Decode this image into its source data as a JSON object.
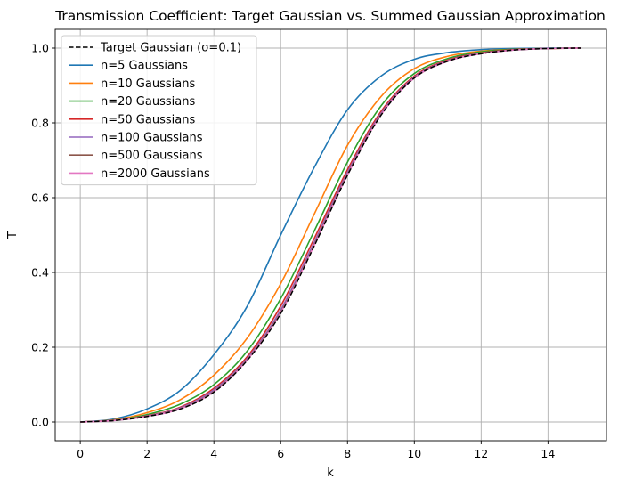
{
  "chart_data": {
    "type": "line",
    "title": "Transmission Coefficient: Target Gaussian vs. Summed Gaussian Approximation",
    "xlabel": "k",
    "ylabel": "T",
    "xlim": [
      -0.75,
      15.75
    ],
    "ylim": [
      -0.05,
      1.05
    ],
    "xticks": [
      0,
      2,
      4,
      6,
      8,
      10,
      12,
      14
    ],
    "yticks": [
      0.0,
      0.2,
      0.4,
      0.6,
      0.8,
      1.0
    ],
    "xtick_labels": [
      "0",
      "2",
      "4",
      "6",
      "8",
      "10",
      "12",
      "14"
    ],
    "ytick_labels": [
      "0.0",
      "0.2",
      "0.4",
      "0.6",
      "0.8",
      "1.0"
    ],
    "grid": true,
    "legend_position": "top-left",
    "x": [
      0,
      1,
      2,
      3,
      4,
      5,
      6,
      7,
      8,
      9,
      10,
      11,
      12,
      13,
      14,
      15
    ],
    "series": [
      {
        "name": "Target Gaussian (σ=0.1)",
        "color": "#000000",
        "dash": true,
        "values": [
          0.0,
          0.004,
          0.015,
          0.035,
          0.08,
          0.165,
          0.29,
          0.47,
          0.66,
          0.82,
          0.92,
          0.965,
          0.985,
          0.995,
          0.999,
          1.0
        ]
      },
      {
        "name": "n=5 Gaussians",
        "color": "#1f77b4",
        "values": [
          0.0,
          0.008,
          0.035,
          0.085,
          0.18,
          0.31,
          0.5,
          0.68,
          0.835,
          0.925,
          0.97,
          0.988,
          0.996,
          0.999,
          1.0,
          1.0
        ]
      },
      {
        "name": "n=10 Gaussians",
        "color": "#ff7f0e",
        "values": [
          0.0,
          0.006,
          0.025,
          0.06,
          0.125,
          0.225,
          0.37,
          0.555,
          0.74,
          0.87,
          0.945,
          0.978,
          0.992,
          0.997,
          0.999,
          1.0
        ]
      },
      {
        "name": "n=20 Gaussians",
        "color": "#2ca02c",
        "values": [
          0.0,
          0.005,
          0.02,
          0.048,
          0.1,
          0.19,
          0.33,
          0.51,
          0.695,
          0.845,
          0.932,
          0.972,
          0.99,
          0.997,
          0.999,
          1.0
        ]
      },
      {
        "name": "n=50 Gaussians",
        "color": "#d62728",
        "values": [
          0.0,
          0.0045,
          0.017,
          0.04,
          0.09,
          0.175,
          0.31,
          0.49,
          0.675,
          0.83,
          0.925,
          0.968,
          0.987,
          0.996,
          0.999,
          1.0
        ]
      },
      {
        "name": "n=100 Gaussians",
        "color": "#9467bd",
        "values": [
          0.0,
          0.0042,
          0.016,
          0.038,
          0.086,
          0.17,
          0.3,
          0.48,
          0.668,
          0.825,
          0.922,
          0.966,
          0.986,
          0.995,
          0.999,
          1.0
        ]
      },
      {
        "name": "n=500 Gaussians",
        "color": "#8c564b",
        "values": [
          0.0,
          0.004,
          0.0155,
          0.036,
          0.082,
          0.167,
          0.294,
          0.474,
          0.663,
          0.822,
          0.92,
          0.965,
          0.985,
          0.995,
          0.999,
          1.0
        ]
      },
      {
        "name": "n=2000 Gaussians",
        "color": "#e377c2",
        "values": [
          0.0,
          0.004,
          0.015,
          0.0355,
          0.081,
          0.166,
          0.292,
          0.472,
          0.661,
          0.821,
          0.92,
          0.965,
          0.985,
          0.995,
          0.999,
          1.0
        ]
      }
    ]
  }
}
